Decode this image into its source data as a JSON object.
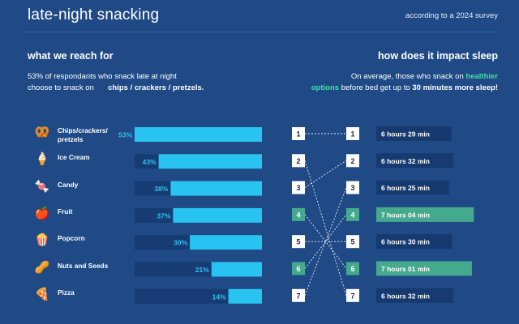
{
  "header": {
    "title": "late-night snacking",
    "subtitle": "according to a 2024 survey"
  },
  "left_panel": {
    "heading": "what we reach for",
    "desc_line1": "53% of respondants who snack late at night",
    "desc_line2_prefix": "choose to snack on",
    "desc_line2_bold": "chips / crackers / pretzels."
  },
  "right_panel": {
    "heading": "how does it impact sleep",
    "desc_line1_prefix": "On average, those who snack on",
    "desc_line1_accent": "healthier",
    "desc_line2_accent": "options",
    "desc_line2_mid": "before bed get up to",
    "desc_line2_bold": "30 minutes more sleep!"
  },
  "colors": {
    "background": "#1f4a86",
    "bar_fill": "#29c3f2",
    "bar_track": "#173c73",
    "healthy": "#45a98d",
    "sleep_box": "#163a70",
    "rank_box": "#ffffff",
    "accent_text": "#3ee0a8"
  },
  "chart_data": [
    {
      "type": "bar",
      "orientation": "horizontal",
      "title": "what we reach for",
      "categories": [
        "Chips/crackers/ pretzels",
        "Ice Cream",
        "Candy",
        "Fruit",
        "Popcorn",
        "Nuts and Seeds",
        "Pizza"
      ],
      "icons": [
        "pretzel-icon",
        "ice-cream-icon",
        "candy-icon",
        "apple-icon",
        "popcorn-icon",
        "peanut-icon",
        "pizza-icon"
      ],
      "values": [
        53,
        43,
        38,
        37,
        30,
        21,
        14
      ],
      "value_labels": [
        "53%",
        "43%",
        "38%",
        "37%",
        "30%",
        "21%",
        "14%"
      ],
      "unit": "%",
      "xlim": [
        0,
        53
      ]
    },
    {
      "type": "slope",
      "title": "how does it impact sleep",
      "left_ranks": [
        "1",
        "2",
        "3",
        "4",
        "5",
        "6",
        "7"
      ],
      "left_healthy": [
        false,
        false,
        false,
        true,
        false,
        true,
        false
      ],
      "connections": [
        [
          1,
          1
        ],
        [
          2,
          7
        ],
        [
          3,
          2
        ],
        [
          4,
          6
        ],
        [
          5,
          5
        ],
        [
          6,
          4
        ],
        [
          7,
          3
        ]
      ],
      "right_ranks": [
        "1",
        "2",
        "3",
        "4",
        "5",
        "6",
        "7"
      ],
      "right_healthy": [
        false,
        false,
        false,
        true,
        false,
        true,
        false
      ],
      "sleep_labels": [
        "6 hours 29 min",
        "6 hours 32 min",
        "6 hours 25 min",
        "7 hours 04 min",
        "6 hours 30 min",
        "7 hours 01 min",
        "6 hours 32 min"
      ],
      "sleep_minutes": [
        389,
        392,
        385,
        424,
        390,
        421,
        392
      ]
    }
  ]
}
